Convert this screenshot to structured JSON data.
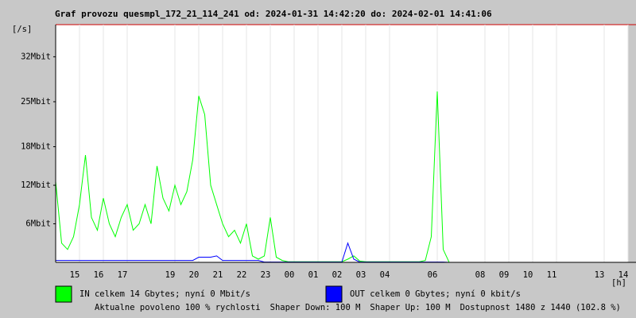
{
  "chart_data": {
    "type": "line",
    "title": "Graf provozu quesmpl_172_21_114_241 od: 2024-01-31 14:42:20 do: 2024-02-01 14:41:06",
    "y_label": "[/s]",
    "x_label": "[h]",
    "ylim": [
      0,
      37
    ],
    "yticks": [
      {
        "value": 6,
        "label": "6Mbit"
      },
      {
        "value": 12,
        "label": "12Mbit"
      },
      {
        "value": 18,
        "label": "18Mbit"
      },
      {
        "value": 25,
        "label": "25Mbit"
      },
      {
        "value": 32,
        "label": "32Mbit"
      }
    ],
    "xlim": [
      0,
      24
    ],
    "xticks": [
      {
        "value": 1,
        "label": "15"
      },
      {
        "value": 2,
        "label": "16"
      },
      {
        "value": 3,
        "label": "17"
      },
      {
        "value": 5,
        "label": "19"
      },
      {
        "value": 6,
        "label": "20"
      },
      {
        "value": 7,
        "label": "21"
      },
      {
        "value": 8,
        "label": "22"
      },
      {
        "value": 9,
        "label": "23"
      },
      {
        "value": 10,
        "label": "00"
      },
      {
        "value": 11,
        "label": "01"
      },
      {
        "value": 12,
        "label": "02"
      },
      {
        "value": 13,
        "label": "03"
      },
      {
        "value": 14,
        "label": "04"
      },
      {
        "value": 16,
        "label": "06"
      },
      {
        "value": 18,
        "label": "08"
      },
      {
        "value": 19,
        "label": "09"
      },
      {
        "value": 20,
        "label": "10"
      },
      {
        "value": 21,
        "label": "11"
      },
      {
        "value": 23,
        "label": "13"
      },
      {
        "value": 24,
        "label": "14"
      }
    ],
    "x": [
      0,
      0.25,
      0.5,
      0.75,
      1,
      1.25,
      1.5,
      1.75,
      2,
      2.25,
      2.5,
      2.75,
      3,
      3.25,
      3.5,
      3.75,
      4,
      4.25,
      4.5,
      4.75,
      5,
      5.25,
      5.5,
      5.75,
      6,
      6.25,
      6.5,
      6.75,
      7,
      7.25,
      7.5,
      7.75,
      8,
      8.25,
      8.5,
      8.75,
      9,
      9.25,
      9.5,
      9.75,
      10,
      10.25,
      10.5,
      10.75,
      11,
      11.25,
      11.5,
      11.75,
      12,
      12.25,
      12.5,
      12.75,
      13,
      13.25,
      13.5,
      13.75,
      14,
      14.25,
      14.5,
      14.75,
      15,
      15.25,
      15.5,
      15.75,
      16,
      16.25,
      16.5,
      16.75,
      17,
      17.25,
      17.5,
      17.75,
      18,
      18.25,
      18.5,
      18.75,
      19,
      19.25,
      19.5,
      19.75,
      20,
      20.25,
      20.5,
      20.75,
      21,
      21.25,
      21.5,
      21.75,
      22,
      22.25,
      22.5,
      22.75,
      23,
      23.25,
      23.5,
      23.75,
      24
    ],
    "series": [
      {
        "name": "IN celkem 14 Gbytes; nyní 0 Mbit/s",
        "color": "#00ff00",
        "values": [
          12.6,
          3,
          2,
          4,
          9,
          16.7,
          7,
          5,
          10,
          6,
          4,
          7,
          9,
          5,
          6,
          9,
          6,
          15,
          10,
          8,
          12,
          9,
          11,
          16,
          25.9,
          23,
          12,
          9,
          6,
          4,
          5,
          3,
          6,
          1,
          0.5,
          1,
          7,
          0.8,
          0.3,
          0.1,
          0.1,
          0.1,
          0.1,
          0.1,
          0.1,
          0.1,
          0.1,
          0.1,
          0.1,
          0.5,
          1,
          0.2,
          0.1,
          0.1,
          0.1,
          0.1,
          0.1,
          0.1,
          0.1,
          0.1,
          0.1,
          0.1,
          0.3,
          4,
          26.6,
          2,
          0,
          0,
          0,
          0,
          0,
          0,
          0,
          0,
          0,
          0,
          0,
          0,
          0,
          0,
          0,
          0,
          0,
          0,
          0,
          0,
          0,
          0,
          0,
          0,
          0,
          0,
          0,
          0,
          0,
          0,
          0
        ]
      },
      {
        "name": "OUT celkem 0 Gbytes; nyní 0 kbit/s",
        "color": "#0000ff",
        "values": [
          0.3,
          0.3,
          0.3,
          0.3,
          0.3,
          0.3,
          0.3,
          0.3,
          0.3,
          0.3,
          0.3,
          0.3,
          0.3,
          0.3,
          0.3,
          0.3,
          0.3,
          0.3,
          0.3,
          0.3,
          0.3,
          0.3,
          0.3,
          0.3,
          0.8,
          0.8,
          0.8,
          1,
          0.3,
          0.3,
          0.3,
          0.3,
          0.3,
          0.3,
          0.3,
          0.05,
          0.05,
          0.05,
          0.05,
          0.05,
          0.05,
          0.05,
          0.05,
          0.05,
          0.05,
          0.05,
          0.05,
          0.05,
          0.05,
          3,
          0.5,
          0.05,
          0.05,
          0.05,
          0.05,
          0.05,
          0.05,
          0.05,
          0.05,
          0.05,
          0.05,
          0.05,
          0.05,
          0.05,
          0.05,
          0.05,
          0,
          0,
          0,
          0,
          0,
          0,
          0,
          0,
          0,
          0,
          0,
          0,
          0,
          0,
          0,
          0,
          0,
          0,
          0,
          0,
          0,
          0,
          0,
          0,
          0,
          0,
          0,
          0,
          0,
          0,
          0
        ]
      }
    ],
    "footer": [
      {
        "text": "Aktualne povoleno 100 % rychlosti",
        "color": "#ff0000"
      },
      {
        "text": "Shaper Down: 100 M",
        "color": "#000000"
      },
      {
        "text": "Shaper Up: 100 M",
        "color": "#800080"
      },
      {
        "text": "Dostupnost 1480 z 1440 (102.8 %)",
        "color": "#000000"
      }
    ]
  }
}
